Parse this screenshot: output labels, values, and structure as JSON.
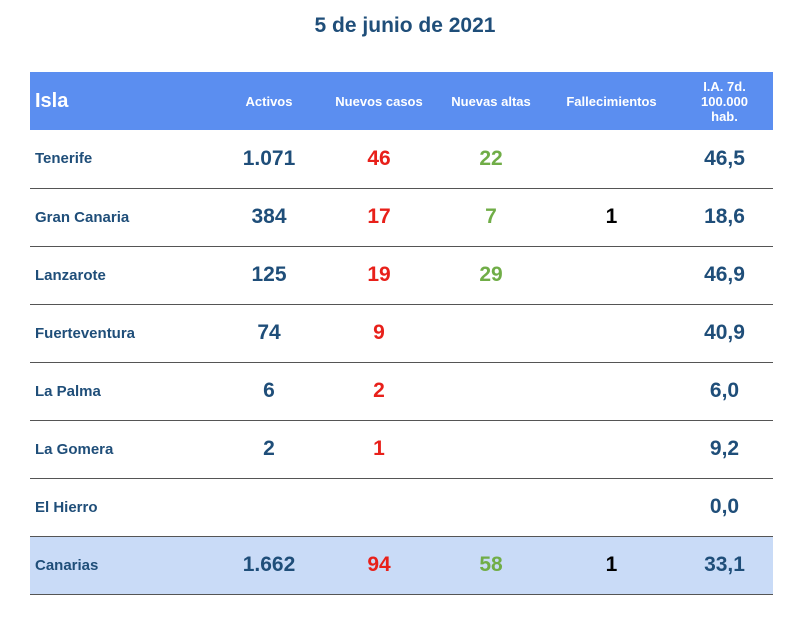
{
  "title": "5 de junio de 2021",
  "headers": {
    "isla": "Isla",
    "activos": "Activos",
    "nuevos": "Nuevos casos",
    "altas": "Nuevas altas",
    "fall": "Fallecimientos",
    "ia": [
      "I.A. 7d.",
      "100.000",
      "hab."
    ]
  },
  "rows": [
    {
      "isla": "Tenerife",
      "activos": "1.071",
      "nuevos": "46",
      "altas": "22",
      "fall": "",
      "ia": "46,5"
    },
    {
      "isla": "Gran Canaria",
      "activos": "384",
      "nuevos": "17",
      "altas": "7",
      "fall": "1",
      "ia": "18,6"
    },
    {
      "isla": "Lanzarote",
      "activos": "125",
      "nuevos": "19",
      "altas": "29",
      "fall": "",
      "ia": "46,9"
    },
    {
      "isla": "Fuerteventura",
      "activos": "74",
      "nuevos": "9",
      "altas": "",
      "fall": "",
      "ia": "40,9"
    },
    {
      "isla": "La Palma",
      "activos": "6",
      "nuevos": "2",
      "altas": "",
      "fall": "",
      "ia": "6,0"
    },
    {
      "isla": "La Gomera",
      "activos": "2",
      "nuevos": "1",
      "altas": "",
      "fall": "",
      "ia": "9,2"
    },
    {
      "isla": "El Hierro",
      "activos": "",
      "nuevos": "",
      "altas": "",
      "fall": "",
      "ia": "0,0"
    }
  ],
  "total": {
    "isla": "Canarias",
    "activos": "1.662",
    "nuevos": "94",
    "altas": "58",
    "fall": "1",
    "ia": "33,1"
  },
  "colors": {
    "header_bg": "#5b8ef0",
    "total_bg": "#c9dbf7",
    "navy": "#1f4e79",
    "red": "#e8201a",
    "green": "#70ad47"
  }
}
